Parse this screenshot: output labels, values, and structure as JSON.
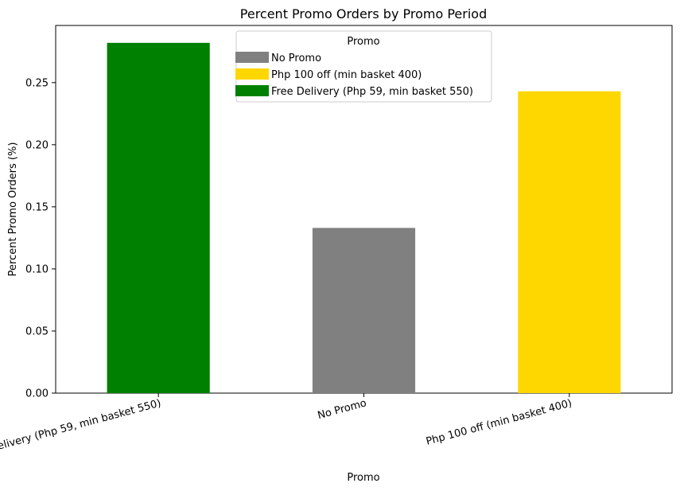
{
  "chart_data": {
    "type": "bar",
    "title": "Percent Promo Orders by Promo Period",
    "xlabel": "Promo",
    "ylabel": "Percent Promo Orders (%)",
    "categories": [
      "Free Delivery (Php 59, min basket 550)",
      "No Promo",
      "Php 100 off (min basket 400)"
    ],
    "values": [
      0.282,
      0.133,
      0.243
    ],
    "bar_colors": [
      "#008000",
      "#808080",
      "#FFD700"
    ],
    "ylim": [
      0,
      0.296
    ],
    "yticks": [
      0.0,
      0.05,
      0.1,
      0.15,
      0.2,
      0.25
    ],
    "ytick_labels": [
      "0.00",
      "0.05",
      "0.10",
      "0.15",
      "0.20",
      "0.25"
    ],
    "grid": false,
    "legend": {
      "title": "Promo",
      "placement": "upper center",
      "entries": [
        {
          "label": "No Promo",
          "color": "#808080"
        },
        {
          "label": "Php 100 off (min basket 400)",
          "color": "#FFD700"
        },
        {
          "label": "Free Delivery (Php 59, min basket 550)",
          "color": "#008000"
        }
      ]
    }
  }
}
